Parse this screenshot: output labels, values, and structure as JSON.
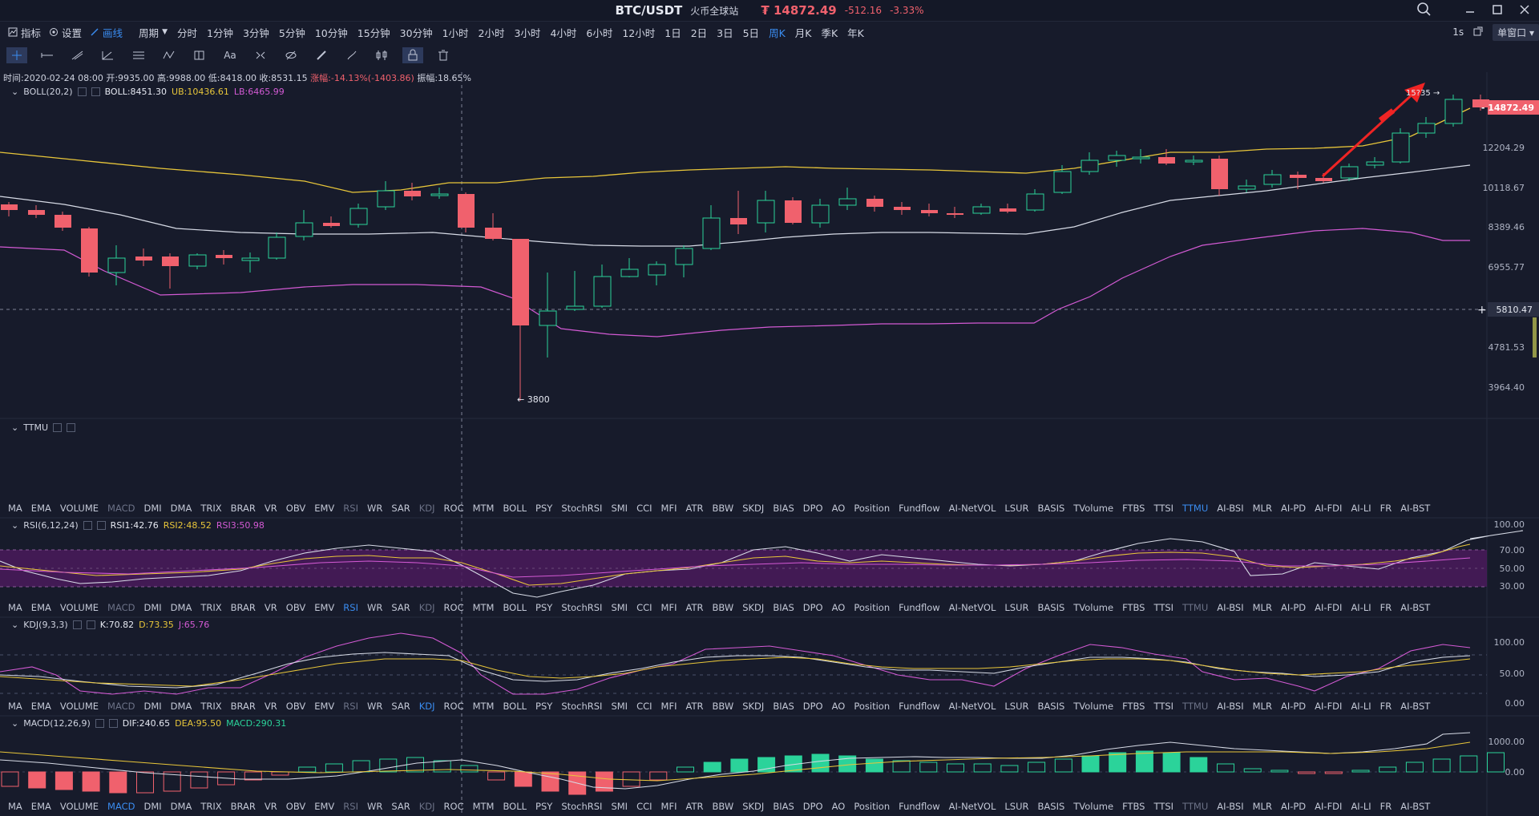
{
  "title": {
    "symbol": "BTC/USDT",
    "exchange": "火币全球站",
    "price": "₮ 14872.49",
    "change": "-512.16",
    "change_pct": "-3.33%"
  },
  "colors": {
    "up": "#2bd39a",
    "down": "#f0616d",
    "accent": "#3a8cf0",
    "yellow": "#e8c63a",
    "pink": "#d35ad4"
  },
  "toolbar": {
    "indicator_label": "指标",
    "settings_label": "设置",
    "draw_label": "画线",
    "period_label": "周期",
    "periods": [
      "分时",
      "1分钟",
      "3分钟",
      "5分钟",
      "10分钟",
      "15分钟",
      "30分钟",
      "1小时",
      "2小时",
      "3小时",
      "4小时",
      "6小时",
      "12小时",
      "1日",
      "2日",
      "3日",
      "5日",
      "周K",
      "月K",
      "季K",
      "年K"
    ],
    "active_period": "周K",
    "refresh": "1s",
    "window_mode": "单窗口"
  },
  "info": {
    "time": "时间:2020-02-24 08:00",
    "open": "开:9935.00",
    "high": "高:9988.00",
    "low": "低:8418.00",
    "close": "收:8531.15",
    "change": "涨幅:-14.13%(-1403.86)",
    "amplitude": "振幅:18.65%"
  },
  "boll": {
    "label": "BOLL(20,2)",
    "mid": "BOLL:8451.30",
    "ub": "UB:10436.61",
    "lb": "LB:6465.99"
  },
  "price_axis": {
    "ticks": [
      "12204.29",
      "10118.67",
      "8389.46",
      "6955.77",
      "4781.53",
      "3964.40"
    ],
    "current": "14872.49",
    "cursor": "5810.47",
    "low_marker": "3800",
    "high_marker": "15?35"
  },
  "ttmu": {
    "label": "TTMU"
  },
  "indicator_tabs": [
    "MA",
    "EMA",
    "VOLUME",
    "MACD",
    "DMI",
    "DMA",
    "TRIX",
    "BRAR",
    "VR",
    "OBV",
    "EMV",
    "RSI",
    "WR",
    "SAR",
    "KDJ",
    "ROC",
    "MTM",
    "BOLL",
    "PSY",
    "StochRSI",
    "SMI",
    "CCI",
    "MFI",
    "ATR",
    "BBW",
    "SKDJ",
    "BIAS",
    "DPO",
    "AO",
    "Position",
    "Fundflow",
    "AI-NetVOL",
    "LSUR",
    "BASIS",
    "TVolume",
    "FTBS",
    "TTSI",
    "TTMU",
    "AI-BSI",
    "MLR",
    "AI-PD",
    "AI-FDI",
    "AI-LI",
    "FR",
    "AI-BST"
  ],
  "rsi": {
    "label": "RSI(6,12,24)",
    "r1": "RSI1:42.76",
    "r2": "RSI2:48.52",
    "r3": "RSI3:50.98",
    "ticks": [
      "100.00",
      "70.00",
      "50.00",
      "30.00"
    ]
  },
  "kdj": {
    "label": "KDJ(9,3,3)",
    "k": "K:70.82",
    "d": "D:73.35",
    "j": "J:65.76",
    "ticks": [
      "100.00",
      "50.00",
      "0.00"
    ]
  },
  "macd": {
    "label": "MACD(12,26,9)",
    "dif": "DIF:240.65",
    "dea": "DEA:95.50",
    "macd": "MACD:290.31",
    "ticks": [
      "1000.00",
      "0.00"
    ]
  }
}
